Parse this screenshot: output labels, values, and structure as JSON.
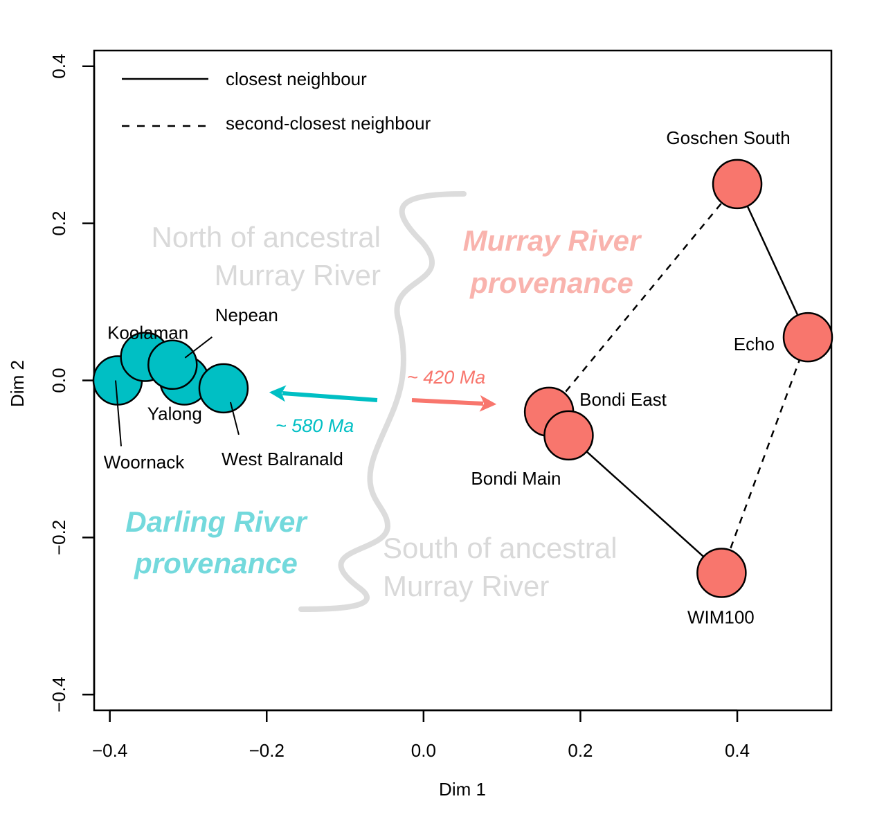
{
  "chart_data": {
    "type": "scatter",
    "xlabel": "Dim 1",
    "ylabel": "Dim 2",
    "xlim": [
      -0.42,
      0.52
    ],
    "ylim": [
      -0.42,
      0.42
    ],
    "x_ticks": [
      -0.4,
      -0.2,
      0.0,
      0.2,
      0.4
    ],
    "x_tick_labels": [
      "−0.4",
      "−0.2",
      "0.0",
      "0.2",
      "0.4"
    ],
    "y_ticks": [
      -0.4,
      -0.2,
      0.0,
      0.2,
      0.4
    ],
    "y_tick_labels": [
      "−0.4",
      "−0.2",
      "0.0",
      "0.2",
      "0.4"
    ],
    "grid": false,
    "legend": {
      "placement": "top-left",
      "entries": [
        {
          "label": "closest neighbour",
          "style": "solid"
        },
        {
          "label": "second-closest neighbour",
          "style": "dashed"
        }
      ]
    },
    "colors": {
      "darling": "#00BFC4",
      "murray": "#F8766D",
      "region_text": "#d9d9d9",
      "darling_text": "#73d9dc",
      "murray_text": "#f9b3ad",
      "divider": "#dcdcdc"
    },
    "points": [
      {
        "name": "Woornack",
        "x": -0.39,
        "y": 0.0,
        "group": "darling"
      },
      {
        "name": "Koolaman",
        "x": -0.355,
        "y": 0.03,
        "group": "darling"
      },
      {
        "name": "Yalong",
        "x": -0.305,
        "y": 0.0,
        "group": "darling"
      },
      {
        "name": "Nepean",
        "x": -0.32,
        "y": 0.02,
        "group": "darling"
      },
      {
        "name": "West Balranald",
        "x": -0.255,
        "y": -0.01,
        "group": "darling"
      },
      {
        "name": "Goschen South",
        "x": 0.4,
        "y": 0.25,
        "group": "murray"
      },
      {
        "name": "Echo",
        "x": 0.49,
        "y": 0.055,
        "group": "murray"
      },
      {
        "name": "Bondi East",
        "x": 0.16,
        "y": -0.04,
        "group": "murray"
      },
      {
        "name": "Bondi Main",
        "x": 0.185,
        "y": -0.07,
        "group": "murray"
      },
      {
        "name": "WIM100",
        "x": 0.38,
        "y": -0.245,
        "group": "murray"
      }
    ],
    "links": [
      {
        "from": "Goschen South",
        "to": "Echo",
        "style": "solid"
      },
      {
        "from": "Bondi Main",
        "to": "WIM100",
        "style": "solid"
      },
      {
        "from": "Bondi East",
        "to": "Goschen South",
        "style": "dashed"
      },
      {
        "from": "WIM100",
        "to": "Echo",
        "style": "dashed"
      }
    ],
    "annotations": {
      "north_region": [
        "North of ancestral",
        "Murray River"
      ],
      "south_region": [
        "South of ancestral",
        "Murray River"
      ],
      "darling_provenance": [
        "Darling River",
        "provenance"
      ],
      "murray_provenance": [
        "Murray River",
        "provenance"
      ],
      "darling_age": "~ 580 Ma",
      "murray_age": "~ 420 Ma"
    }
  }
}
